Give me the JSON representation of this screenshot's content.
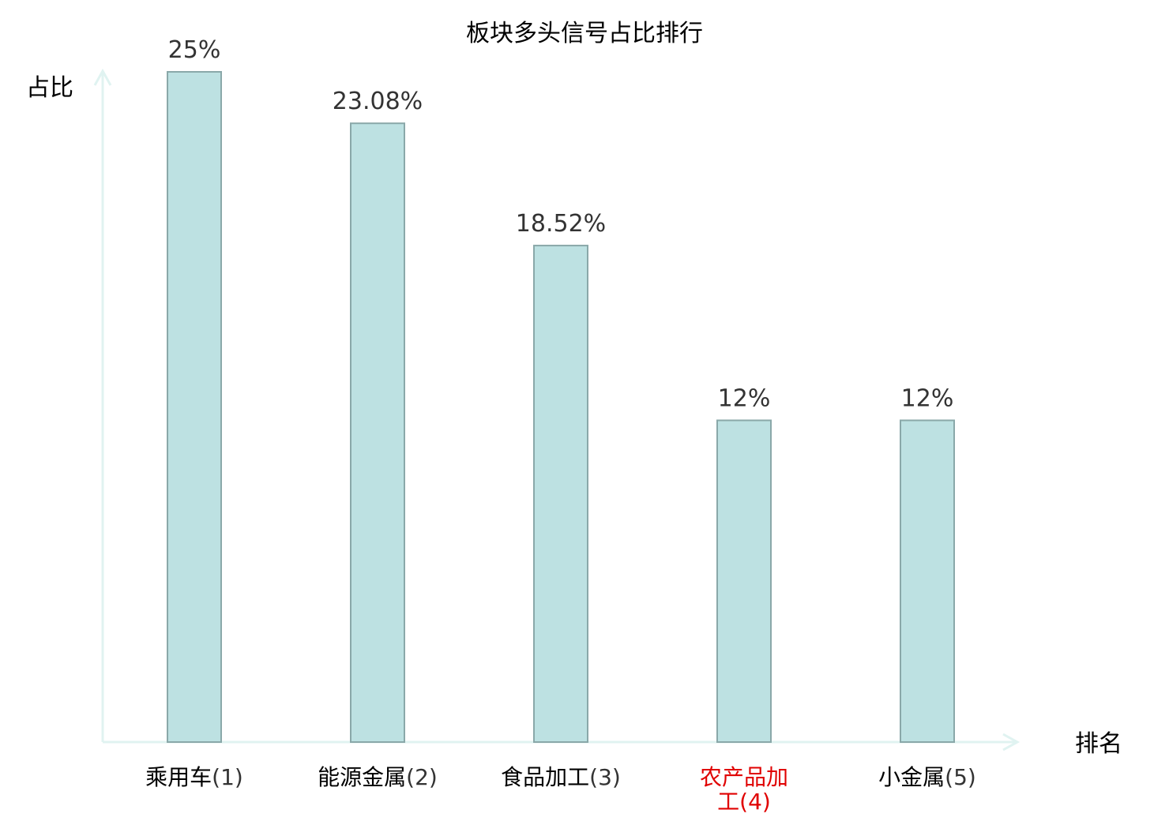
{
  "chart_data": {
    "type": "bar",
    "title": "板块多头信号占比排行",
    "ylabel": "占比",
    "xlabel": "排名",
    "ylim": [
      0,
      25
    ],
    "categories": [
      {
        "name": "乘用车",
        "rank": "(1)",
        "highlight": false
      },
      {
        "name": "能源金属",
        "rank": "(2)",
        "highlight": false
      },
      {
        "name": "食品加工",
        "rank": "(3)",
        "highlight": false
      },
      {
        "name": "农产品加工",
        "rank": "(4)",
        "highlight": true
      },
      {
        "name": "小金属",
        "rank": "(5)",
        "highlight": false
      }
    ],
    "values": [
      25,
      23.08,
      18.52,
      12,
      12
    ],
    "value_labels": [
      "25%",
      "23.08%",
      "18.52%",
      "12%",
      "12%"
    ],
    "grid": false
  },
  "colors": {
    "bar_fill": "#bde1e2",
    "bar_stroke": "#8aa8a9",
    "axis": "#e0f3f1",
    "text": "#000000",
    "value_text": "#333333",
    "rank_text": "#333333",
    "highlight": "#e00000"
  }
}
